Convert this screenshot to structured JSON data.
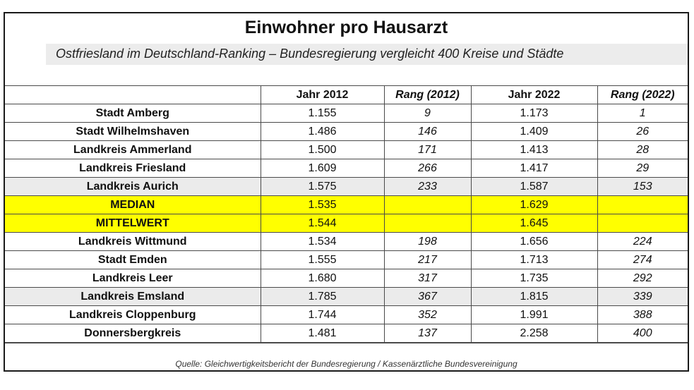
{
  "title": "Einwohner pro Hausarzt",
  "subtitle": "Ostfriesland im Deutschland-Ranking – Bundesregierung vergleicht 400 Kreise und Städte",
  "columns": [
    "",
    "Jahr 2012",
    "Rang (2012)",
    "Jahr 2022",
    "Rang (2022)"
  ],
  "rows": [
    {
      "name": "Stadt Amberg",
      "y2012": "1.155",
      "r2012": "9",
      "y2022": "1.173",
      "r2022": "1"
    },
    {
      "name": "Stadt Wilhelmshaven",
      "y2012": "1.486",
      "r2012": "146",
      "y2022": "1.409",
      "r2022": "26"
    },
    {
      "name": "Landkreis Ammerland",
      "y2012": "1.500",
      "r2012": "171",
      "y2022": "1.413",
      "r2022": "28"
    },
    {
      "name": "Landkreis Friesland",
      "y2012": "1.609",
      "r2012": "266",
      "y2022": "1.417",
      "r2022": "29"
    },
    {
      "name": "Landkreis Aurich",
      "y2012": "1.575",
      "r2012": "233",
      "y2022": "1.587",
      "r2022": "153"
    },
    {
      "name": "MEDIAN",
      "y2012": "1.535",
      "r2012": "",
      "y2022": "1.629",
      "r2022": ""
    },
    {
      "name": "MITTELWERT",
      "y2012": "1.544",
      "r2012": "",
      "y2022": "1.645",
      "r2022": ""
    },
    {
      "name": "Landkreis Wittmund",
      "y2012": "1.534",
      "r2012": "198",
      "y2022": "1.656",
      "r2022": "224"
    },
    {
      "name": "Stadt Emden",
      "y2012": "1.555",
      "r2012": "217",
      "y2022": "1.713",
      "r2022": "274"
    },
    {
      "name": "Landkreis Leer",
      "y2012": "1.680",
      "r2012": "317",
      "y2022": "1.735",
      "r2022": "292"
    },
    {
      "name": "Landkreis Emsland",
      "y2012": "1.785",
      "r2012": "367",
      "y2022": "1.815",
      "r2022": "339"
    },
    {
      "name": "Landkreis Cloppenburg",
      "y2012": "1.744",
      "r2012": "352",
      "y2022": "1.991",
      "r2022": "388"
    },
    {
      "name": "Donnersbergkreis",
      "y2012": "1.481",
      "r2012": "137",
      "y2022": "2.258",
      "r2022": "400"
    }
  ],
  "source": "Quelle: Gleichwertigkeitsbericht der Bundesregierung / Kassenärztliche Bundesvereinigung",
  "colors": {
    "highlight": "#ffff00",
    "shade": "#ebebeb",
    "border": "#1a1a1a"
  }
}
